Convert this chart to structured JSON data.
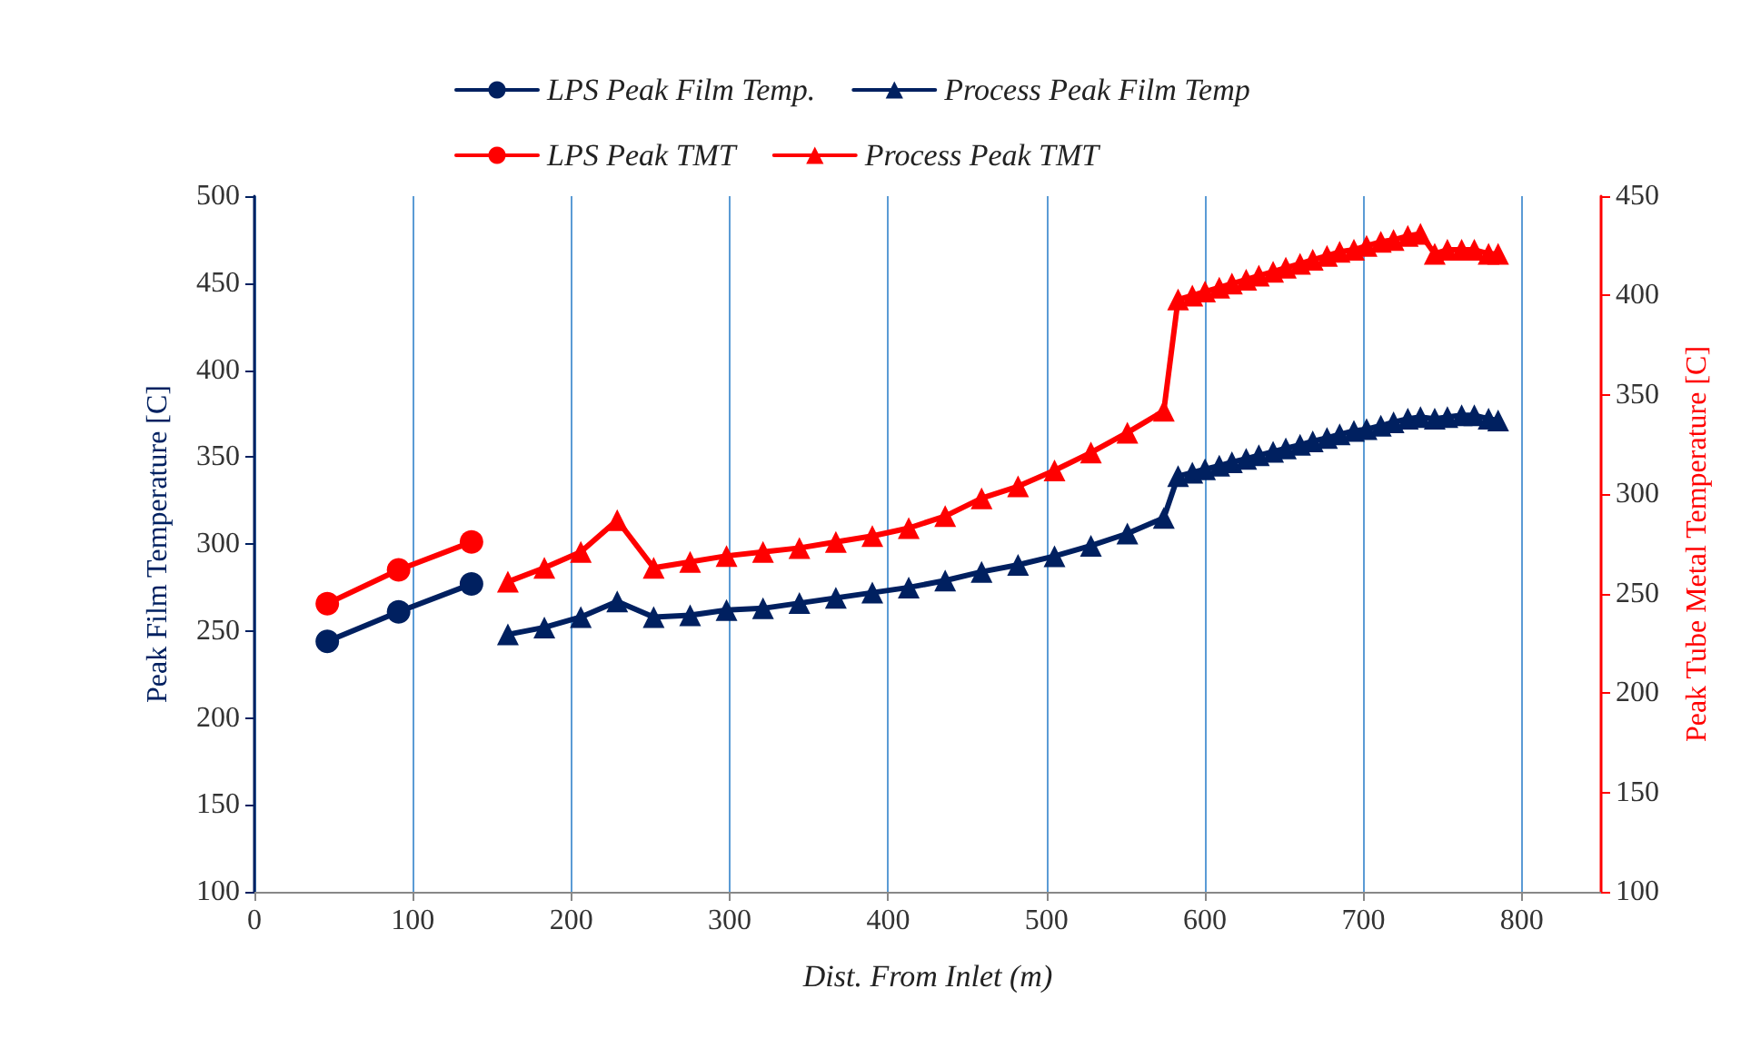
{
  "chart_data": {
    "type": "line",
    "xlabel": "Dist. From Inlet (m)",
    "ylabel": "Peak Film Temperature [C]",
    "y2label": "Peak Tube Metal Temperature [C]",
    "xlim": [
      0,
      850
    ],
    "xticks": [
      0,
      100,
      200,
      300,
      400,
      500,
      600,
      700,
      800
    ],
    "ylim": [
      100,
      500
    ],
    "yticks": [
      100,
      150,
      200,
      250,
      300,
      350,
      400,
      450,
      500
    ],
    "y2lim": [
      100,
      450
    ],
    "y2ticks": [
      100,
      150,
      200,
      250,
      300,
      350,
      400,
      450
    ],
    "grid": "x",
    "legend": "top",
    "line_style": "solid",
    "series": [
      {
        "name": "LPS Peak Film Temp.",
        "color": "#002060",
        "marker": "circle",
        "x": [
          46,
          91,
          137
        ],
        "values": [
          244,
          261,
          277
        ]
      },
      {
        "name": "Process Peak Film Temp",
        "color": "#002060",
        "marker": "triangle",
        "x": [
          160,
          183,
          206,
          229,
          252,
          275,
          298,
          321,
          344,
          367,
          390,
          413,
          436,
          459,
          482,
          505,
          528,
          551,
          574,
          583,
          592,
          600,
          609,
          617,
          626,
          634,
          643,
          651,
          660,
          668,
          677,
          685,
          694,
          702,
          711,
          719,
          728,
          736,
          745,
          753,
          762,
          770,
          779,
          785
        ],
        "values": [
          248,
          252,
          258,
          267,
          258,
          259,
          262,
          263,
          266,
          269,
          272,
          275,
          279,
          284,
          288,
          293,
          299,
          306,
          315,
          339,
          341,
          343,
          345,
          347,
          349,
          351,
          353,
          355,
          357,
          359,
          361,
          363,
          365,
          366,
          368,
          370,
          372,
          373,
          372,
          373,
          374,
          374,
          372,
          371
        ]
      },
      {
        "name": "LPS Peak TMT",
        "color": "#ff0000",
        "marker": "circle",
        "axis": "y2",
        "x": [
          46,
          91,
          137
        ],
        "values": [
          245,
          262,
          276
        ]
      },
      {
        "name": "Process Peak TMT",
        "color": "#ff0000",
        "marker": "triangle",
        "axis": "y2",
        "x": [
          160,
          183,
          206,
          229,
          252,
          275,
          298,
          321,
          344,
          367,
          390,
          413,
          436,
          459,
          482,
          505,
          528,
          551,
          574,
          583,
          592,
          600,
          609,
          617,
          626,
          634,
          643,
          651,
          660,
          668,
          677,
          685,
          694,
          702,
          711,
          719,
          728,
          736,
          745,
          753,
          762,
          770,
          779,
          785
        ],
        "values": [
          256,
          263,
          271,
          287,
          263,
          266,
          269,
          271,
          273,
          276,
          279,
          283,
          289,
          298,
          304,
          312,
          321,
          331,
          342,
          398,
          400,
          402,
          404,
          406,
          408,
          410,
          412,
          414,
          416,
          418,
          420,
          422,
          423,
          425,
          427,
          428,
          430,
          431,
          421,
          423,
          423,
          423,
          421,
          421
        ]
      }
    ]
  }
}
